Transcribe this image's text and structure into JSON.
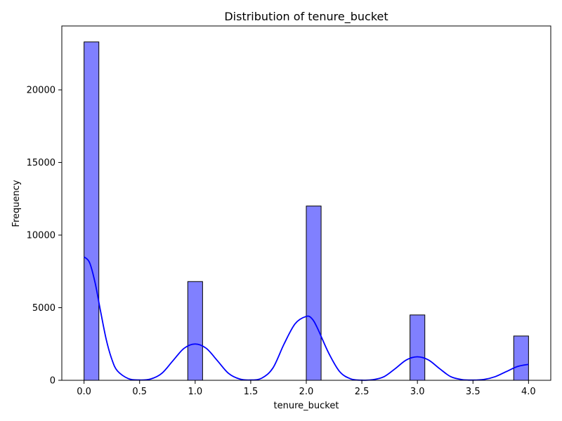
{
  "chart_data": {
    "type": "bar",
    "title": "Distribution of tenure_bucket",
    "xlabel": "tenure_bucket",
    "ylabel": "Frequency",
    "xlim": [
      -0.2,
      4.2
    ],
    "ylim": [
      0,
      24400
    ],
    "x_ticks": [
      0.0,
      0.5,
      1.0,
      1.5,
      2.0,
      2.5,
      3.0,
      3.5,
      4.0
    ],
    "x_tick_labels": [
      "0.0",
      "0.5",
      "1.0",
      "1.5",
      "2.0",
      "2.5",
      "3.0",
      "3.5",
      "4.0"
    ],
    "y_ticks": [
      0,
      5000,
      10000,
      15000,
      20000
    ],
    "y_tick_labels": [
      "0",
      "5000",
      "10000",
      "15000",
      "20000"
    ],
    "grid": false,
    "bins": [
      {
        "x0": 0.0,
        "x1": 0.1333,
        "value": 23300
      },
      {
        "x0": 0.9333,
        "x1": 1.0667,
        "value": 6800
      },
      {
        "x0": 2.0,
        "x1": 2.1333,
        "value": 12000
      },
      {
        "x0": 2.9333,
        "x1": 3.0667,
        "value": 4500
      },
      {
        "x0": 3.8667,
        "x1": 4.0,
        "value": 3050
      }
    ],
    "kde": {
      "x": [
        0.0,
        0.05,
        0.1,
        0.15,
        0.2,
        0.25,
        0.3,
        0.4,
        0.5,
        0.6,
        0.7,
        0.8,
        0.9,
        1.0,
        1.1,
        1.2,
        1.3,
        1.4,
        1.5,
        1.6,
        1.7,
        1.8,
        1.9,
        2.0,
        2.05,
        2.1,
        2.2,
        2.3,
        2.4,
        2.5,
        2.6,
        2.7,
        2.8,
        2.9,
        3.0,
        3.1,
        3.2,
        3.3,
        3.4,
        3.5,
        3.6,
        3.7,
        3.8,
        3.9,
        4.0
      ],
      "y": [
        8500,
        8100,
        6700,
        4700,
        2800,
        1450,
        650,
        110,
        20,
        90,
        480,
        1350,
        2200,
        2500,
        2200,
        1350,
        480,
        90,
        20,
        150,
        850,
        2500,
        3900,
        4400,
        4250,
        3600,
        1900,
        600,
        100,
        10,
        40,
        250,
        800,
        1400,
        1620,
        1400,
        800,
        250,
        50,
        15,
        60,
        250,
        600,
        950,
        1100
      ]
    },
    "colors": {
      "bar_fill": "#8080ff",
      "bar_edge": "#000000",
      "kde_line": "#0000ff"
    }
  }
}
